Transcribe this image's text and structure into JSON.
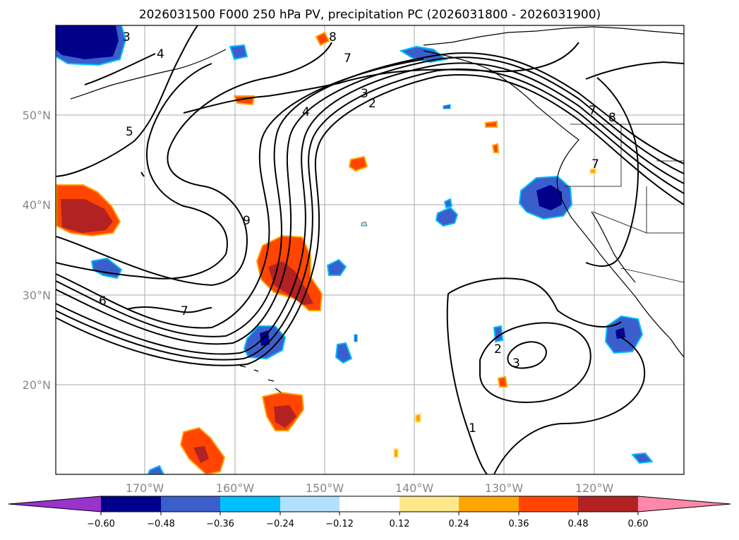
{
  "title": "2026031500 F000 250 hPa PV, precipitation PC (2026031800 - 2026031900)",
  "axes": {
    "lat_labels": [
      "50°N",
      "40°N",
      "30°N",
      "20°N"
    ],
    "lon_labels": [
      "170°W",
      "160°W",
      "150°W",
      "140°W",
      "130°W",
      "120°W"
    ]
  },
  "contour_labels": [
    "3",
    "4",
    "5",
    "7",
    "8",
    "4",
    "3",
    "2",
    "7",
    "8",
    "7",
    "9",
    "6",
    "7",
    "2",
    "3",
    "1"
  ],
  "colorbar": {
    "ticks": [
      "−0.60",
      "−0.48",
      "−0.36",
      "−0.24",
      "−0.12",
      "0.12",
      "0.24",
      "0.36",
      "0.48",
      "0.60"
    ],
    "colors": [
      "#9933cc",
      "#00008b",
      "#3a5fcd",
      "#00bfff",
      "#b0e2ff",
      "#ffffff",
      "#ffe88a",
      "#ffa500",
      "#ff4500",
      "#b22222",
      "#ff88aa"
    ]
  }
}
